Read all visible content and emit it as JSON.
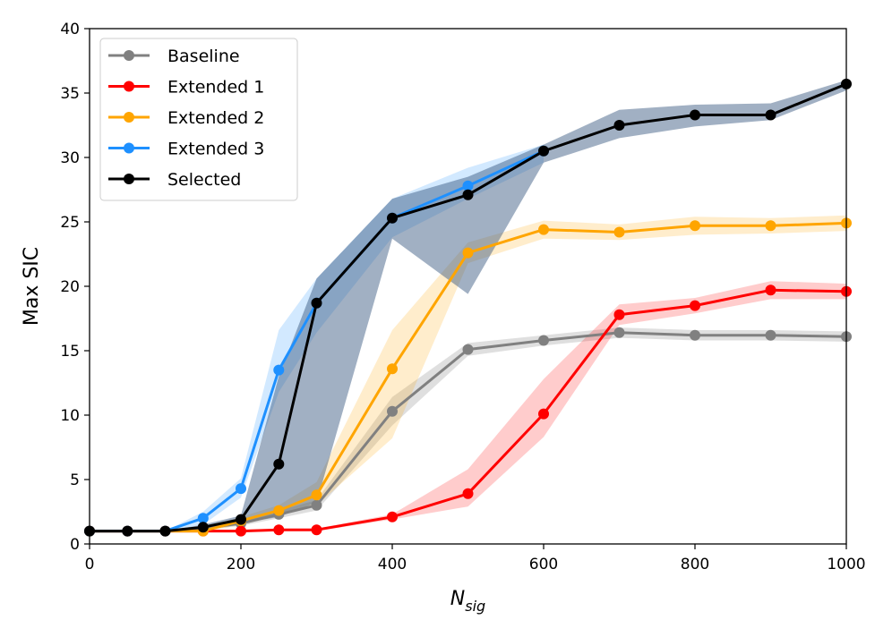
{
  "chart_data": {
    "type": "line",
    "title": "",
    "xlabel_main": "N",
    "xlabel_sub": "sig",
    "ylabel": "Max SIC",
    "xlim": [
      0,
      1000
    ],
    "ylim": [
      0,
      40
    ],
    "xticks": [
      0,
      200,
      400,
      600,
      800,
      1000
    ],
    "yticks": [
      0,
      5,
      10,
      15,
      20,
      25,
      30,
      35,
      40
    ],
    "grid": false,
    "legend_position": "top-left",
    "series": [
      {
        "name": "Baseline",
        "color": "#808080",
        "x": [
          0,
          50,
          100,
          150,
          200,
          250,
          300,
          400,
          500,
          600,
          700,
          800,
          900,
          1000
        ],
        "y": [
          1.0,
          1.0,
          1.0,
          1.2,
          1.6,
          2.3,
          3.0,
          10.3,
          15.1,
          15.8,
          16.4,
          16.2,
          16.2,
          16.1
        ],
        "lower": [
          1.0,
          1.0,
          1.0,
          1.1,
          1.4,
          2.0,
          2.6,
          9.2,
          14.6,
          15.4,
          16.0,
          15.8,
          15.8,
          15.7
        ],
        "upper": [
          1.0,
          1.0,
          1.0,
          1.3,
          1.8,
          2.6,
          3.4,
          11.4,
          15.6,
          16.2,
          16.8,
          16.6,
          16.6,
          16.5
        ]
      },
      {
        "name": "Extended 1",
        "color": "#ff0000",
        "x": [
          0,
          50,
          100,
          150,
          200,
          250,
          300,
          400,
          500,
          600,
          700,
          800,
          900,
          1000
        ],
        "y": [
          1.0,
          1.0,
          1.0,
          1.0,
          1.0,
          1.1,
          1.1,
          2.1,
          3.9,
          10.1,
          17.8,
          18.5,
          19.7,
          19.6
        ],
        "lower": [
          1.0,
          1.0,
          1.0,
          0.9,
          0.9,
          1.0,
          1.0,
          1.9,
          2.9,
          8.3,
          17.0,
          17.9,
          19.0,
          19.0
        ],
        "upper": [
          1.0,
          1.0,
          1.0,
          1.1,
          1.1,
          1.2,
          1.2,
          2.3,
          5.8,
          12.8,
          18.6,
          19.1,
          20.4,
          20.2
        ]
      },
      {
        "name": "Extended 2",
        "color": "#ffa500",
        "x": [
          0,
          50,
          100,
          150,
          200,
          250,
          300,
          400,
          500,
          600,
          700,
          800,
          900,
          1000
        ],
        "y": [
          1.0,
          1.0,
          1.0,
          1.0,
          1.8,
          2.6,
          3.8,
          13.6,
          22.6,
          24.4,
          24.2,
          24.7,
          24.7,
          24.9
        ],
        "lower": [
          1.0,
          1.0,
          1.0,
          0.9,
          1.5,
          2.2,
          3.0,
          8.2,
          21.8,
          23.7,
          23.6,
          24.0,
          24.1,
          24.3
        ],
        "upper": [
          1.0,
          1.0,
          1.0,
          1.2,
          2.1,
          3.0,
          4.8,
          16.6,
          23.4,
          25.1,
          24.8,
          25.4,
          25.3,
          25.5
        ]
      },
      {
        "name": "Extended 3",
        "color": "#1e90ff",
        "x": [
          0,
          50,
          100,
          150,
          200,
          250,
          300,
          400,
          500,
          600
        ],
        "y": [
          1.0,
          1.0,
          1.0,
          2.0,
          4.3,
          13.5,
          18.7,
          25.3,
          27.8,
          30.5
        ],
        "lower": [
          1.0,
          1.0,
          1.0,
          1.5,
          3.6,
          11.8,
          16.4,
          23.8,
          26.8,
          29.6
        ],
        "upper": [
          1.0,
          1.0,
          1.0,
          2.5,
          5.1,
          16.6,
          20.6,
          26.8,
          29.2,
          31.0
        ]
      },
      {
        "name": "Selected",
        "color": "#000000",
        "x": [
          0,
          50,
          100,
          150,
          200,
          250,
          300,
          400,
          500,
          600,
          700,
          800,
          900,
          1000
        ],
        "y": [
          1.0,
          1.0,
          1.0,
          1.3,
          1.9,
          6.2,
          18.7,
          25.3,
          27.1,
          30.5,
          32.5,
          33.3,
          33.3,
          35.7
        ],
        "lower": [
          1.0,
          1.0,
          1.0,
          1.1,
          1.6,
          2.1,
          3.2,
          23.7,
          19.4,
          29.6,
          31.5,
          32.4,
          32.9,
          35.2
        ],
        "upper": [
          1.0,
          1.0,
          1.0,
          1.5,
          2.2,
          13.0,
          20.6,
          26.8,
          28.5,
          31.0,
          33.7,
          34.1,
          34.2,
          36.0
        ]
      }
    ],
    "band_colors": {
      "Baseline": "#808080",
      "Extended 1": "#ff0000",
      "Extended 2": "#ffa500",
      "Extended 3": "#1e90ff",
      "Selected": "#2f4f7a"
    }
  }
}
